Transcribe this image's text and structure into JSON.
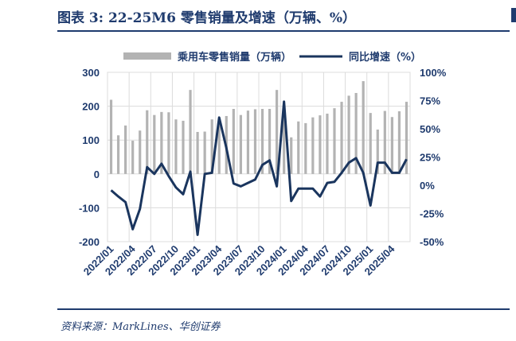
{
  "title": "图表 3:  22-25M6 零售销量及增速（万辆、%）",
  "source": "资料来源：MarkLines、华创证券",
  "colors": {
    "bar": "#b3b3b3",
    "line": "#1a355e",
    "title": "#1f3b6e"
  },
  "chart_data": {
    "type": "bar+line",
    "categories": [
      "2022/01",
      "2022/02",
      "2022/03",
      "2022/04",
      "2022/05",
      "2022/06",
      "2022/07",
      "2022/08",
      "2022/09",
      "2022/10",
      "2022/11",
      "2022/12",
      "2023/01",
      "2023/02",
      "2023/03",
      "2023/04",
      "2023/05",
      "2023/06",
      "2023/07",
      "2023/08",
      "2023/09",
      "2023/10",
      "2023/11",
      "2023/12",
      "2024/01",
      "2024/02",
      "2024/03",
      "2024/04",
      "2024/05",
      "2024/06",
      "2024/07",
      "2024/08",
      "2024/09",
      "2024/10",
      "2024/11",
      "2024/12",
      "2025/01",
      "2025/02",
      "2025/03",
      "2025/04",
      "2025/05",
      "2025/06"
    ],
    "tick_labels": [
      "2022/01",
      "2022/04",
      "2022/07",
      "2022/10",
      "2023/01",
      "2023/04",
      "2023/07",
      "2023/10",
      "2024/01",
      "2024/04",
      "2024/07",
      "2024/10",
      "2025/01",
      "2025/04"
    ],
    "series": [
      {
        "name": "乘用车零售销量（万辆）",
        "type": "bar",
        "axis": "left",
        "values": [
          219,
          114,
          143,
          98,
          128,
          188,
          174,
          183,
          182,
          161,
          157,
          248,
          124,
          125,
          161,
          160,
          171,
          192,
          174,
          187,
          191,
          192,
          192,
          248,
          200,
          108,
          155,
          150,
          167,
          173,
          178,
          194,
          213,
          231,
          239,
          274,
          180,
          131,
          186,
          168,
          185,
          213
        ]
      },
      {
        "name": "同比增速（%）",
        "type": "line",
        "axis": "right",
        "values": [
          -4.5,
          -10,
          -15,
          -39,
          -21,
          16,
          10,
          19,
          8,
          -2,
          -8,
          12,
          -44,
          10,
          11,
          60,
          33,
          1.5,
          -1,
          2,
          5,
          18,
          22,
          -1,
          74,
          -14,
          -3,
          -3,
          -3,
          -10,
          2,
          3,
          11,
          20,
          24,
          11,
          -18,
          20,
          20,
          11,
          11,
          23
        ]
      }
    ],
    "left_axis": {
      "ylim": [
        -200,
        300
      ],
      "ticks": [
        "300",
        "200",
        "100",
        "0",
        "-100",
        "-200"
      ]
    },
    "right_axis": {
      "ylim": [
        -50,
        100
      ],
      "ticks": [
        "100%",
        "75%",
        "50%",
        "25%",
        "0%",
        "-25%",
        "-50%"
      ]
    },
    "legend_position": "top"
  }
}
